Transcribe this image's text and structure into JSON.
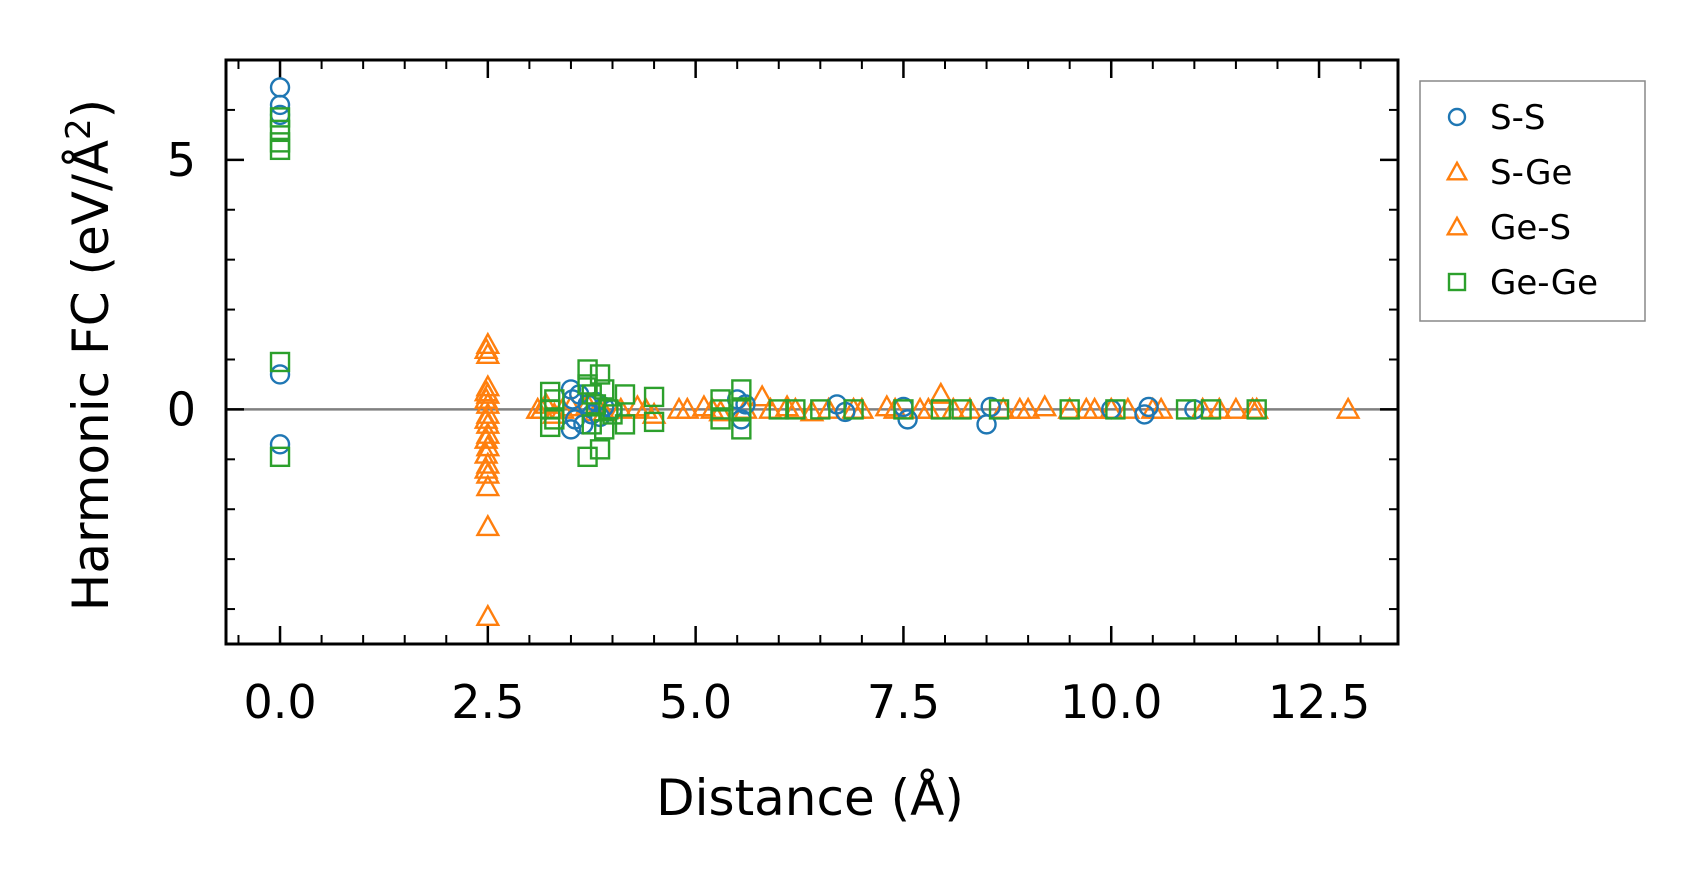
{
  "chart_data": {
    "type": "scatter",
    "xlabel": "Distance (Å)",
    "ylabel_main": "Harmonic FC (eV/Å",
    "ylabel_sup": "2",
    "ylabel_close": ")",
    "xlim": [
      -0.65,
      13.45
    ],
    "ylim": [
      -4.7,
      7.0
    ],
    "xticks": [
      0.0,
      2.5,
      5.0,
      7.5,
      10.0,
      12.5
    ],
    "xtick_labels": [
      "0.0",
      "2.5",
      "5.0",
      "7.5",
      "10.0",
      "12.5"
    ],
    "yticks": [
      0,
      5
    ],
    "ytick_labels": [
      "0",
      "5"
    ],
    "x_minor_step": 0.5,
    "y_minor_step": 1.0,
    "zero_line": true,
    "legend_position": "outside-right",
    "series": [
      {
        "name": "S-S",
        "label": "S-S",
        "marker": "circle",
        "color": "#1f77b4",
        "x": [
          0,
          0,
          0,
          0,
          0,
          3.5,
          3.5,
          3.52,
          3.55,
          3.6,
          3.65,
          3.7,
          3.75,
          3.8,
          3.85,
          3.9,
          4.0,
          5.5,
          5.55,
          5.6,
          6.7,
          6.8,
          7.5,
          7.55,
          8.5,
          8.55,
          10.0,
          10.4,
          10.45,
          11.0
        ],
        "y": [
          6.45,
          6.1,
          5.9,
          0.7,
          -0.7,
          0.4,
          -0.4,
          0.2,
          -0.2,
          0.3,
          -0.3,
          0.1,
          -0.1,
          0.15,
          -0.15,
          0.05,
          0.0,
          0.2,
          -0.2,
          0.1,
          0.1,
          -0.05,
          0.05,
          -0.2,
          -0.3,
          0.05,
          0.0,
          -0.1,
          0.05,
          0.0
        ]
      },
      {
        "name": "S-Ge",
        "label": "S-Ge",
        "marker": "triangle",
        "color": "#ff7f0e",
        "x": [
          2.5,
          2.5,
          2.5,
          2.5,
          2.5,
          2.5,
          2.5,
          2.5,
          2.5,
          2.5,
          2.5,
          2.5,
          2.5,
          2.5,
          3.1,
          3.2,
          3.3,
          3.5,
          3.7,
          3.9,
          4.1,
          4.3,
          4.5,
          4.9,
          5.1,
          5.3,
          5.8,
          6.1,
          6.4,
          6.9,
          7.3,
          7.8,
          7.95,
          8.3,
          8.9,
          9.2,
          9.5,
          9.8,
          10.2,
          10.6,
          11.1,
          11.5,
          11.75,
          12.85
        ],
        "y": [
          -4.15,
          -2.35,
          -1.55,
          -1.3,
          -1.1,
          -0.75,
          -0.5,
          -0.3,
          -0.1,
          0.1,
          0.3,
          0.45,
          1.1,
          1.3,
          0.0,
          0.1,
          -0.1,
          0.05,
          0.1,
          -0.05,
          0.0,
          0.05,
          -0.1,
          0.0,
          0.05,
          -0.05,
          0.25,
          0.05,
          -0.05,
          0.0,
          0.05,
          0.0,
          0.3,
          0.0,
          0.0,
          0.05,
          0.0,
          0.0,
          0.0,
          0.0,
          0.0,
          0.0,
          0.0,
          0.0
        ]
      },
      {
        "name": "Ge-S",
        "label": "Ge-S",
        "marker": "triangle",
        "color": "#ff7f0e",
        "x": [
          2.48,
          2.48,
          2.48,
          2.48,
          2.48,
          2.48,
          2.48,
          3.15,
          3.4,
          3.8,
          4.4,
          4.8,
          5.2,
          5.6,
          5.9,
          6.2,
          6.6,
          7.0,
          7.4,
          7.7,
          8.1,
          8.7,
          9.0,
          9.7,
          10.0,
          10.5,
          11.3,
          11.7
        ],
        "y": [
          -1.2,
          -0.9,
          -0.6,
          -0.2,
          0.2,
          0.35,
          1.2,
          0.0,
          0.0,
          -0.05,
          0.0,
          0.0,
          0.0,
          0.0,
          0.0,
          0.0,
          0.0,
          0.0,
          0.0,
          0.0,
          0.0,
          0.0,
          0.0,
          0.0,
          0.0,
          0.0,
          0.0,
          0.0
        ]
      },
      {
        "name": "Ge-Ge",
        "label": "Ge-Ge",
        "marker": "square",
        "color": "#2ca02c",
        "x": [
          0,
          0,
          0,
          0,
          0,
          0,
          3.25,
          3.25,
          3.25,
          3.3,
          3.3,
          3.7,
          3.7,
          3.7,
          3.75,
          3.75,
          3.8,
          3.85,
          3.85,
          3.9,
          3.9,
          3.95,
          4.0,
          4.15,
          4.15,
          4.5,
          4.5,
          5.3,
          5.3,
          5.3,
          5.55,
          5.55,
          5.55,
          6.0,
          6.2,
          6.5,
          6.9,
          7.5,
          7.95,
          8.2,
          8.65,
          9.5,
          10.05,
          10.9,
          11.2,
          11.75
        ],
        "y": [
          5.85,
          5.6,
          5.35,
          5.2,
          0.95,
          -0.95,
          0.35,
          0.0,
          -0.35,
          0.2,
          -0.2,
          0.8,
          0.5,
          -0.95,
          0.3,
          -0.3,
          0.1,
          0.7,
          -0.8,
          0.4,
          -0.4,
          0.0,
          -0.1,
          0.3,
          -0.3,
          0.25,
          -0.25,
          0.2,
          0.0,
          -0.2,
          0.4,
          0.0,
          -0.4,
          0.0,
          0.0,
          0.0,
          0.0,
          0.0,
          0.0,
          0.0,
          0.0,
          0.0,
          0.0,
          0.0,
          0.0,
          0.0
        ]
      }
    ]
  }
}
